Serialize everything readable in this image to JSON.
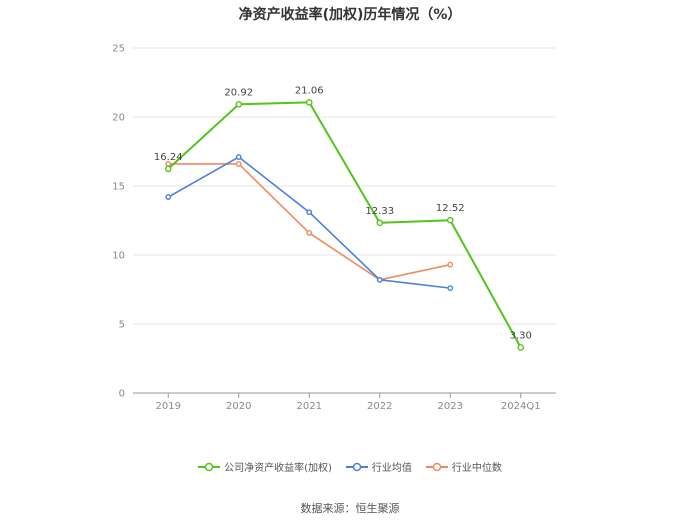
{
  "chart_data": {
    "type": "line",
    "title": "净资产收益率(加权)历年情况（%）",
    "categories": [
      "2019",
      "2020",
      "2021",
      "2022",
      "2023",
      "2024Q1"
    ],
    "ylim": [
      0,
      25
    ],
    "yticks": [
      0,
      5,
      10,
      15,
      20,
      25
    ],
    "grid": true,
    "legend_position": "bottom",
    "series": [
      {
        "name": "公司净资产收益率(加权)",
        "color": "#52c41a",
        "values": [
          16.24,
          20.92,
          21.06,
          12.33,
          12.52,
          3.3
        ],
        "labels": [
          "16.24",
          "20.92",
          "21.06",
          "12.33",
          "12.52",
          "3.30"
        ]
      },
      {
        "name": "行业均值",
        "color": "#4a7fe0",
        "values": [
          14.2,
          17.1,
          13.1,
          8.2,
          7.6,
          null
        ]
      },
      {
        "name": "行业中位数",
        "color": "#f08a5d",
        "values": [
          16.6,
          16.6,
          11.6,
          8.2,
          9.3,
          null
        ]
      }
    ],
    "source": "数据来源：恒生聚源"
  }
}
